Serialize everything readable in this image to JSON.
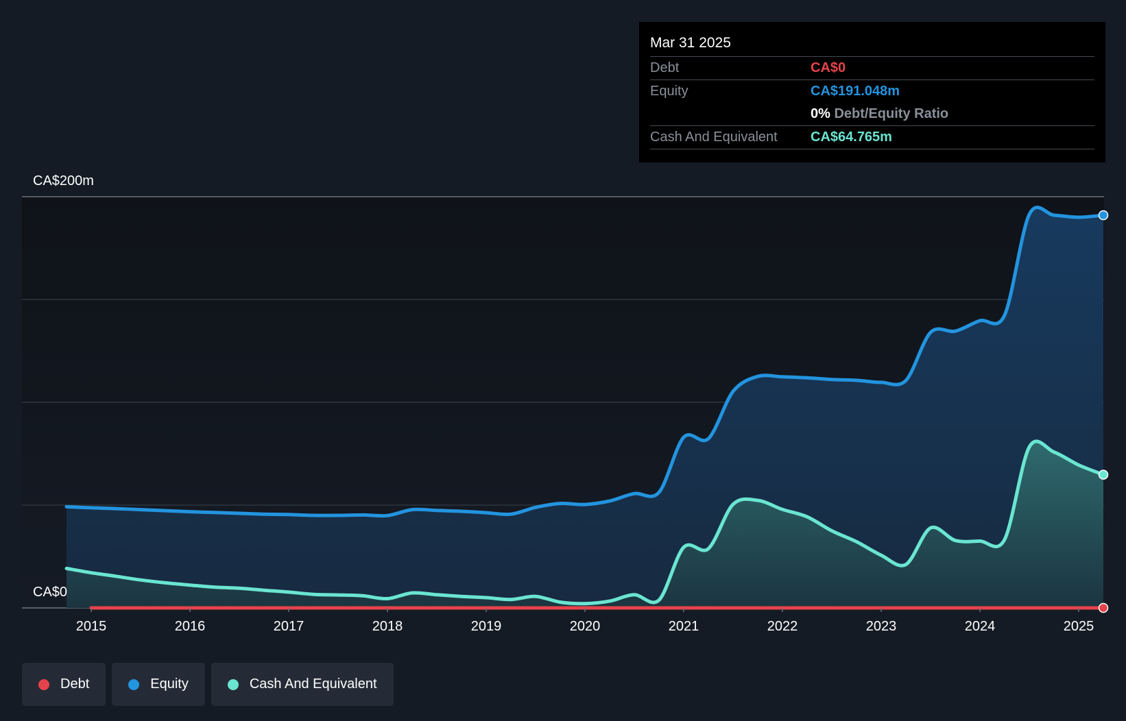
{
  "tooltip": {
    "date": "Mar 31 2025",
    "debt_label": "Debt",
    "debt_value": "CA$0",
    "equity_label": "Equity",
    "equity_value": "CA$191.048m",
    "ratio_value": "0%",
    "ratio_label": "Debt/Equity Ratio",
    "cash_label": "Cash And Equivalent",
    "cash_value": "CA$64.765m"
  },
  "legend": {
    "debt": "Debt",
    "equity": "Equity",
    "cash": "Cash And Equivalent"
  },
  "colors": {
    "debt": "#e5434b",
    "equity": "#2394df",
    "cash": "#6ae5d1",
    "background": "#151b25"
  },
  "chart_data": {
    "type": "area",
    "ylim": [
      0,
      200
    ],
    "y_tick_labels": [
      "CA$0",
      "CA$200m"
    ],
    "x_ticks": [
      "2015",
      "2016",
      "2017",
      "2018",
      "2019",
      "2020",
      "2021",
      "2022",
      "2023",
      "2024",
      "2025"
    ],
    "grid": true,
    "legend_position": "bottom-left",
    "series": [
      {
        "name": "Debt",
        "color": "#e5434b",
        "points": [
          [
            2015.0,
            0
          ],
          [
            2025.25,
            0
          ]
        ]
      },
      {
        "name": "Equity",
        "color": "#2394df",
        "points": [
          [
            2014.75,
            49.2
          ],
          [
            2015.0,
            48.7
          ],
          [
            2015.25,
            48.3
          ],
          [
            2015.5,
            47.8
          ],
          [
            2015.75,
            47.3
          ],
          [
            2016.0,
            46.8
          ],
          [
            2016.25,
            46.4
          ],
          [
            2016.5,
            46.0
          ],
          [
            2016.75,
            45.6
          ],
          [
            2017.0,
            45.4
          ],
          [
            2017.25,
            45.0
          ],
          [
            2017.5,
            45.0
          ],
          [
            2017.75,
            45.2
          ],
          [
            2018.0,
            44.9
          ],
          [
            2018.25,
            47.8
          ],
          [
            2018.5,
            47.4
          ],
          [
            2018.75,
            47.0
          ],
          [
            2019.0,
            46.3
          ],
          [
            2019.25,
            45.6
          ],
          [
            2019.5,
            48.9
          ],
          [
            2019.75,
            50.8
          ],
          [
            2020.0,
            50.3
          ],
          [
            2020.25,
            52.0
          ],
          [
            2020.5,
            55.6
          ],
          [
            2020.75,
            56.2
          ],
          [
            2021.0,
            83.0
          ],
          [
            2021.25,
            82.3
          ],
          [
            2021.5,
            105.3
          ],
          [
            2021.75,
            112.6
          ],
          [
            2022.0,
            112.4
          ],
          [
            2022.25,
            111.9
          ],
          [
            2022.5,
            111.1
          ],
          [
            2022.75,
            110.7
          ],
          [
            2023.0,
            109.7
          ],
          [
            2023.25,
            110.6
          ],
          [
            2023.5,
            134.0
          ],
          [
            2023.75,
            134.6
          ],
          [
            2024.0,
            139.7
          ],
          [
            2024.25,
            142.4
          ],
          [
            2024.5,
            191.4
          ],
          [
            2024.75,
            191.0
          ],
          [
            2025.0,
            190.0
          ],
          [
            2025.25,
            191.0
          ]
        ]
      },
      {
        "name": "Cash And Equivalent",
        "color": "#6ae5d1",
        "points": [
          [
            2014.75,
            19.2
          ],
          [
            2015.0,
            17.1
          ],
          [
            2015.25,
            15.4
          ],
          [
            2015.5,
            13.6
          ],
          [
            2015.75,
            12.2
          ],
          [
            2016.0,
            11.1
          ],
          [
            2016.25,
            10.1
          ],
          [
            2016.5,
            9.6
          ],
          [
            2016.75,
            8.6
          ],
          [
            2017.0,
            7.7
          ],
          [
            2017.25,
            6.6
          ],
          [
            2017.5,
            6.3
          ],
          [
            2017.75,
            5.9
          ],
          [
            2018.0,
            4.5
          ],
          [
            2018.25,
            7.3
          ],
          [
            2018.5,
            6.4
          ],
          [
            2018.75,
            5.6
          ],
          [
            2019.0,
            5.0
          ],
          [
            2019.25,
            4.1
          ],
          [
            2019.5,
            5.6
          ],
          [
            2019.75,
            2.8
          ],
          [
            2020.0,
            2.1
          ],
          [
            2020.25,
            3.3
          ],
          [
            2020.5,
            6.4
          ],
          [
            2020.75,
            3.8
          ],
          [
            2021.0,
            29.5
          ],
          [
            2021.25,
            28.8
          ],
          [
            2021.5,
            50.4
          ],
          [
            2021.75,
            52.3
          ],
          [
            2022.0,
            47.9
          ],
          [
            2022.25,
            44.3
          ],
          [
            2022.5,
            37.5
          ],
          [
            2022.75,
            32.2
          ],
          [
            2023.0,
            25.6
          ],
          [
            2023.25,
            21.1
          ],
          [
            2023.5,
            38.9
          ],
          [
            2023.75,
            32.8
          ],
          [
            2024.0,
            32.5
          ],
          [
            2024.25,
            33.3
          ],
          [
            2024.5,
            78.3
          ],
          [
            2024.75,
            75.8
          ],
          [
            2025.0,
            69.5
          ],
          [
            2025.25,
            64.8
          ]
        ]
      }
    ]
  }
}
